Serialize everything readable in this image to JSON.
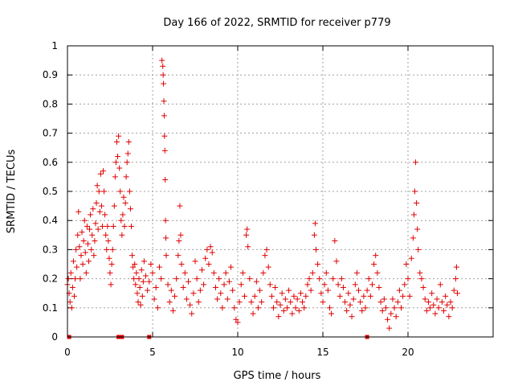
{
  "chart_data": {
    "type": "scatter",
    "title": "Day 166 of 2022, SRMTID for receiver p779",
    "xlabel": "GPS time / hours",
    "ylabel": "SRMTID / TECUs",
    "xlim": [
      0,
      25
    ],
    "ylim": [
      0,
      1
    ],
    "xticks": [
      0,
      5,
      10,
      15,
      20
    ],
    "xtick_labels": [
      "0",
      "5",
      "10",
      "15",
      "20"
    ],
    "yticks": [
      0,
      0.1,
      0.2,
      0.3,
      0.4,
      0.5,
      0.6,
      0.7,
      0.8,
      0.9,
      1
    ],
    "ytick_labels": [
      "0",
      "0.1",
      "0.2",
      "0.3",
      "0.4",
      "0.5",
      "0.6",
      "0.7",
      "0.8",
      "0.9",
      "1"
    ],
    "grid": true,
    "marker": "+",
    "color": "#e00000",
    "series": [
      {
        "name": "SRMTID",
        "points": [
          [
            0.0,
            0.18
          ],
          [
            0.05,
            0.2
          ],
          [
            0.1,
            0.15
          ],
          [
            0.15,
            0.12
          ],
          [
            0.2,
            0.22
          ],
          [
            0.25,
            0.1
          ],
          [
            0.3,
            0.17
          ],
          [
            0.35,
            0.26
          ],
          [
            0.4,
            0.14
          ],
          [
            0.45,
            0.2
          ],
          [
            0.5,
            0.3
          ],
          [
            0.55,
            0.24
          ],
          [
            0.6,
            0.35
          ],
          [
            0.65,
            0.43
          ],
          [
            0.7,
            0.31
          ],
          [
            0.75,
            0.2
          ],
          [
            0.8,
            0.28
          ],
          [
            0.85,
            0.36
          ],
          [
            0.9,
            0.25
          ],
          [
            0.95,
            0.33
          ],
          [
            1.0,
            0.4
          ],
          [
            1.05,
            0.29
          ],
          [
            1.1,
            0.22
          ],
          [
            1.15,
            0.38
          ],
          [
            1.2,
            0.32
          ],
          [
            1.25,
            0.26
          ],
          [
            1.3,
            0.37
          ],
          [
            1.35,
            0.42
          ],
          [
            1.4,
            0.3
          ],
          [
            1.45,
            0.35
          ],
          [
            1.5,
            0.44
          ],
          [
            1.55,
            0.28
          ],
          [
            1.6,
            0.33
          ],
          [
            1.65,
            0.39
          ],
          [
            1.7,
            0.46
          ],
          [
            1.75,
            0.52
          ],
          [
            1.8,
            0.37
          ],
          [
            1.85,
            0.5
          ],
          [
            1.9,
            0.43
          ],
          [
            1.95,
            0.56
          ],
          [
            2.0,
            0.45
          ],
          [
            2.05,
            0.38
          ],
          [
            2.1,
            0.57
          ],
          [
            2.15,
            0.5
          ],
          [
            2.2,
            0.42
          ],
          [
            2.25,
            0.35
          ],
          [
            2.3,
            0.3
          ],
          [
            2.35,
            0.38
          ],
          [
            2.4,
            0.33
          ],
          [
            2.45,
            0.27
          ],
          [
            2.5,
            0.22
          ],
          [
            2.55,
            0.18
          ],
          [
            2.6,
            0.25
          ],
          [
            2.65,
            0.3
          ],
          [
            2.7,
            0.38
          ],
          [
            2.75,
            0.45
          ],
          [
            2.8,
            0.55
          ],
          [
            2.85,
            0.6
          ],
          [
            2.9,
            0.67
          ],
          [
            2.95,
            0.62
          ],
          [
            3.0,
            0.69
          ],
          [
            3.05,
            0.58
          ],
          [
            3.1,
            0.5
          ],
          [
            3.15,
            0.4
          ],
          [
            3.2,
            0.35
          ],
          [
            3.25,
            0.42
          ],
          [
            3.3,
            0.48
          ],
          [
            3.35,
            0.38
          ],
          [
            3.4,
            0.46
          ],
          [
            3.45,
            0.55
          ],
          [
            3.5,
            0.6
          ],
          [
            3.55,
            0.63
          ],
          [
            3.6,
            0.67
          ],
          [
            3.65,
            0.5
          ],
          [
            3.7,
            0.44
          ],
          [
            3.75,
            0.38
          ],
          [
            3.8,
            0.28
          ],
          [
            3.85,
            0.24
          ],
          [
            3.9,
            0.2
          ],
          [
            3.95,
            0.25
          ],
          [
            4.0,
            0.18
          ],
          [
            4.05,
            0.22
          ],
          [
            4.1,
            0.15
          ],
          [
            4.15,
            0.12
          ],
          [
            4.2,
            0.2
          ],
          [
            4.25,
            0.17
          ],
          [
            4.3,
            0.11
          ],
          [
            4.35,
            0.23
          ],
          [
            4.4,
            0.14
          ],
          [
            4.45,
            0.19
          ],
          [
            4.5,
            0.26
          ],
          [
            4.6,
            0.21
          ],
          [
            4.7,
            0.16
          ],
          [
            4.8,
            0.19
          ],
          [
            4.9,
            0.25
          ],
          [
            5.0,
            0.22
          ],
          [
            5.1,
            0.13
          ],
          [
            5.2,
            0.17
          ],
          [
            5.3,
            0.1
          ],
          [
            5.4,
            0.24
          ],
          [
            5.5,
            0.2
          ],
          [
            5.55,
            0.95
          ],
          [
            5.6,
            0.93
          ],
          [
            5.62,
            0.9
          ],
          [
            5.64,
            0.87
          ],
          [
            5.66,
            0.81
          ],
          [
            5.68,
            0.76
          ],
          [
            5.7,
            0.69
          ],
          [
            5.72,
            0.64
          ],
          [
            5.74,
            0.54
          ],
          [
            5.76,
            0.4
          ],
          [
            5.78,
            0.34
          ],
          [
            5.8,
            0.28
          ],
          [
            5.9,
            0.18
          ],
          [
            6.0,
            0.12
          ],
          [
            6.1,
            0.16
          ],
          [
            6.2,
            0.09
          ],
          [
            6.3,
            0.14
          ],
          [
            6.4,
            0.2
          ],
          [
            6.5,
            0.28
          ],
          [
            6.55,
            0.33
          ],
          [
            6.6,
            0.45
          ],
          [
            6.65,
            0.35
          ],
          [
            6.7,
            0.25
          ],
          [
            6.8,
            0.17
          ],
          [
            6.9,
            0.22
          ],
          [
            7.0,
            0.13
          ],
          [
            7.1,
            0.19
          ],
          [
            7.2,
            0.11
          ],
          [
            7.3,
            0.08
          ],
          [
            7.4,
            0.15
          ],
          [
            7.5,
            0.26
          ],
          [
            7.6,
            0.2
          ],
          [
            7.7,
            0.12
          ],
          [
            7.8,
            0.16
          ],
          [
            7.9,
            0.23
          ],
          [
            8.0,
            0.18
          ],
          [
            8.1,
            0.27
          ],
          [
            8.2,
            0.3
          ],
          [
            8.3,
            0.25
          ],
          [
            8.4,
            0.31
          ],
          [
            8.5,
            0.29
          ],
          [
            8.6,
            0.22
          ],
          [
            8.7,
            0.17
          ],
          [
            8.8,
            0.13
          ],
          [
            8.9,
            0.2
          ],
          [
            9.0,
            0.15
          ],
          [
            9.1,
            0.1
          ],
          [
            9.2,
            0.18
          ],
          [
            9.3,
            0.22
          ],
          [
            9.4,
            0.13
          ],
          [
            9.5,
            0.19
          ],
          [
            9.6,
            0.24
          ],
          [
            9.7,
            0.16
          ],
          [
            9.8,
            0.1
          ],
          [
            9.9,
            0.06
          ],
          [
            10.0,
            0.05
          ],
          [
            10.1,
            0.12
          ],
          [
            10.2,
            0.18
          ],
          [
            10.3,
            0.22
          ],
          [
            10.4,
            0.14
          ],
          [
            10.5,
            0.35
          ],
          [
            10.55,
            0.37
          ],
          [
            10.6,
            0.31
          ],
          [
            10.7,
            0.2
          ],
          [
            10.8,
            0.12
          ],
          [
            10.9,
            0.08
          ],
          [
            11.0,
            0.14
          ],
          [
            11.1,
            0.19
          ],
          [
            11.2,
            0.1
          ],
          [
            11.3,
            0.16
          ],
          [
            11.4,
            0.12
          ],
          [
            11.5,
            0.22
          ],
          [
            11.6,
            0.28
          ],
          [
            11.7,
            0.3
          ],
          [
            11.8,
            0.24
          ],
          [
            11.9,
            0.18
          ],
          [
            12.0,
            0.14
          ],
          [
            12.1,
            0.1
          ],
          [
            12.2,
            0.17
          ],
          [
            12.3,
            0.12
          ],
          [
            12.4,
            0.07
          ],
          [
            12.5,
            0.11
          ],
          [
            12.6,
            0.15
          ],
          [
            12.7,
            0.09
          ],
          [
            12.8,
            0.13
          ],
          [
            12.9,
            0.1
          ],
          [
            13.0,
            0.16
          ],
          [
            13.1,
            0.12
          ],
          [
            13.2,
            0.08
          ],
          [
            13.3,
            0.14
          ],
          [
            13.4,
            0.1
          ],
          [
            13.5,
            0.13
          ],
          [
            13.6,
            0.09
          ],
          [
            13.7,
            0.15
          ],
          [
            13.8,
            0.12
          ],
          [
            13.9,
            0.1
          ],
          [
            14.0,
            0.14
          ],
          [
            14.1,
            0.18
          ],
          [
            14.2,
            0.2
          ],
          [
            14.3,
            0.16
          ],
          [
            14.4,
            0.22
          ],
          [
            14.5,
            0.35
          ],
          [
            14.55,
            0.39
          ],
          [
            14.6,
            0.3
          ],
          [
            14.7,
            0.25
          ],
          [
            14.8,
            0.2
          ],
          [
            14.9,
            0.15
          ],
          [
            15.0,
            0.12
          ],
          [
            15.1,
            0.18
          ],
          [
            15.2,
            0.22
          ],
          [
            15.3,
            0.16
          ],
          [
            15.4,
            0.1
          ],
          [
            15.5,
            0.08
          ],
          [
            15.6,
            0.2
          ],
          [
            15.7,
            0.33
          ],
          [
            15.8,
            0.26
          ],
          [
            15.9,
            0.18
          ],
          [
            16.0,
            0.14
          ],
          [
            16.1,
            0.2
          ],
          [
            16.2,
            0.17
          ],
          [
            16.3,
            0.12
          ],
          [
            16.4,
            0.09
          ],
          [
            16.5,
            0.15
          ],
          [
            16.6,
            0.11
          ],
          [
            16.7,
            0.07
          ],
          [
            16.8,
            0.13
          ],
          [
            16.9,
            0.18
          ],
          [
            17.0,
            0.22
          ],
          [
            17.1,
            0.16
          ],
          [
            17.2,
            0.12
          ],
          [
            17.3,
            0.09
          ],
          [
            17.4,
            0.14
          ],
          [
            17.5,
            0.1
          ],
          [
            17.6,
            0.16
          ],
          [
            17.7,
            0.2
          ],
          [
            17.8,
            0.14
          ],
          [
            17.9,
            0.18
          ],
          [
            18.0,
            0.25
          ],
          [
            18.1,
            0.28
          ],
          [
            18.2,
            0.22
          ],
          [
            18.3,
            0.17
          ],
          [
            18.4,
            0.12
          ],
          [
            18.5,
            0.09
          ],
          [
            18.6,
            0.13
          ],
          [
            18.7,
            0.1
          ],
          [
            18.8,
            0.06
          ],
          [
            18.9,
            0.03
          ],
          [
            19.0,
            0.08
          ],
          [
            19.1,
            0.13
          ],
          [
            19.2,
            0.1
          ],
          [
            19.3,
            0.07
          ],
          [
            19.4,
            0.12
          ],
          [
            19.5,
            0.16
          ],
          [
            19.6,
            0.1
          ],
          [
            19.7,
            0.14
          ],
          [
            19.8,
            0.18
          ],
          [
            19.9,
            0.25
          ],
          [
            20.0,
            0.2
          ],
          [
            20.1,
            0.14
          ],
          [
            20.2,
            0.27
          ],
          [
            20.3,
            0.34
          ],
          [
            20.35,
            0.42
          ],
          [
            20.4,
            0.5
          ],
          [
            20.45,
            0.6
          ],
          [
            20.5,
            0.46
          ],
          [
            20.55,
            0.37
          ],
          [
            20.6,
            0.3
          ],
          [
            20.7,
            0.22
          ],
          [
            20.8,
            0.2
          ],
          [
            20.9,
            0.17
          ],
          [
            21.0,
            0.13
          ],
          [
            21.1,
            0.09
          ],
          [
            21.2,
            0.12
          ],
          [
            21.3,
            0.1
          ],
          [
            21.4,
            0.15
          ],
          [
            21.5,
            0.11
          ],
          [
            21.6,
            0.08
          ],
          [
            21.7,
            0.13
          ],
          [
            21.8,
            0.1
          ],
          [
            21.9,
            0.18
          ],
          [
            22.0,
            0.12
          ],
          [
            22.1,
            0.09
          ],
          [
            22.2,
            0.14
          ],
          [
            22.3,
            0.11
          ],
          [
            22.4,
            0.07
          ],
          [
            22.5,
            0.12
          ],
          [
            22.6,
            0.1
          ],
          [
            22.7,
            0.16
          ],
          [
            22.8,
            0.2
          ],
          [
            22.85,
            0.24
          ],
          [
            22.9,
            0.15
          ]
        ],
        "zero_points": [
          0.1,
          3.0,
          3.2,
          4.8,
          17.6
        ]
      }
    ]
  }
}
